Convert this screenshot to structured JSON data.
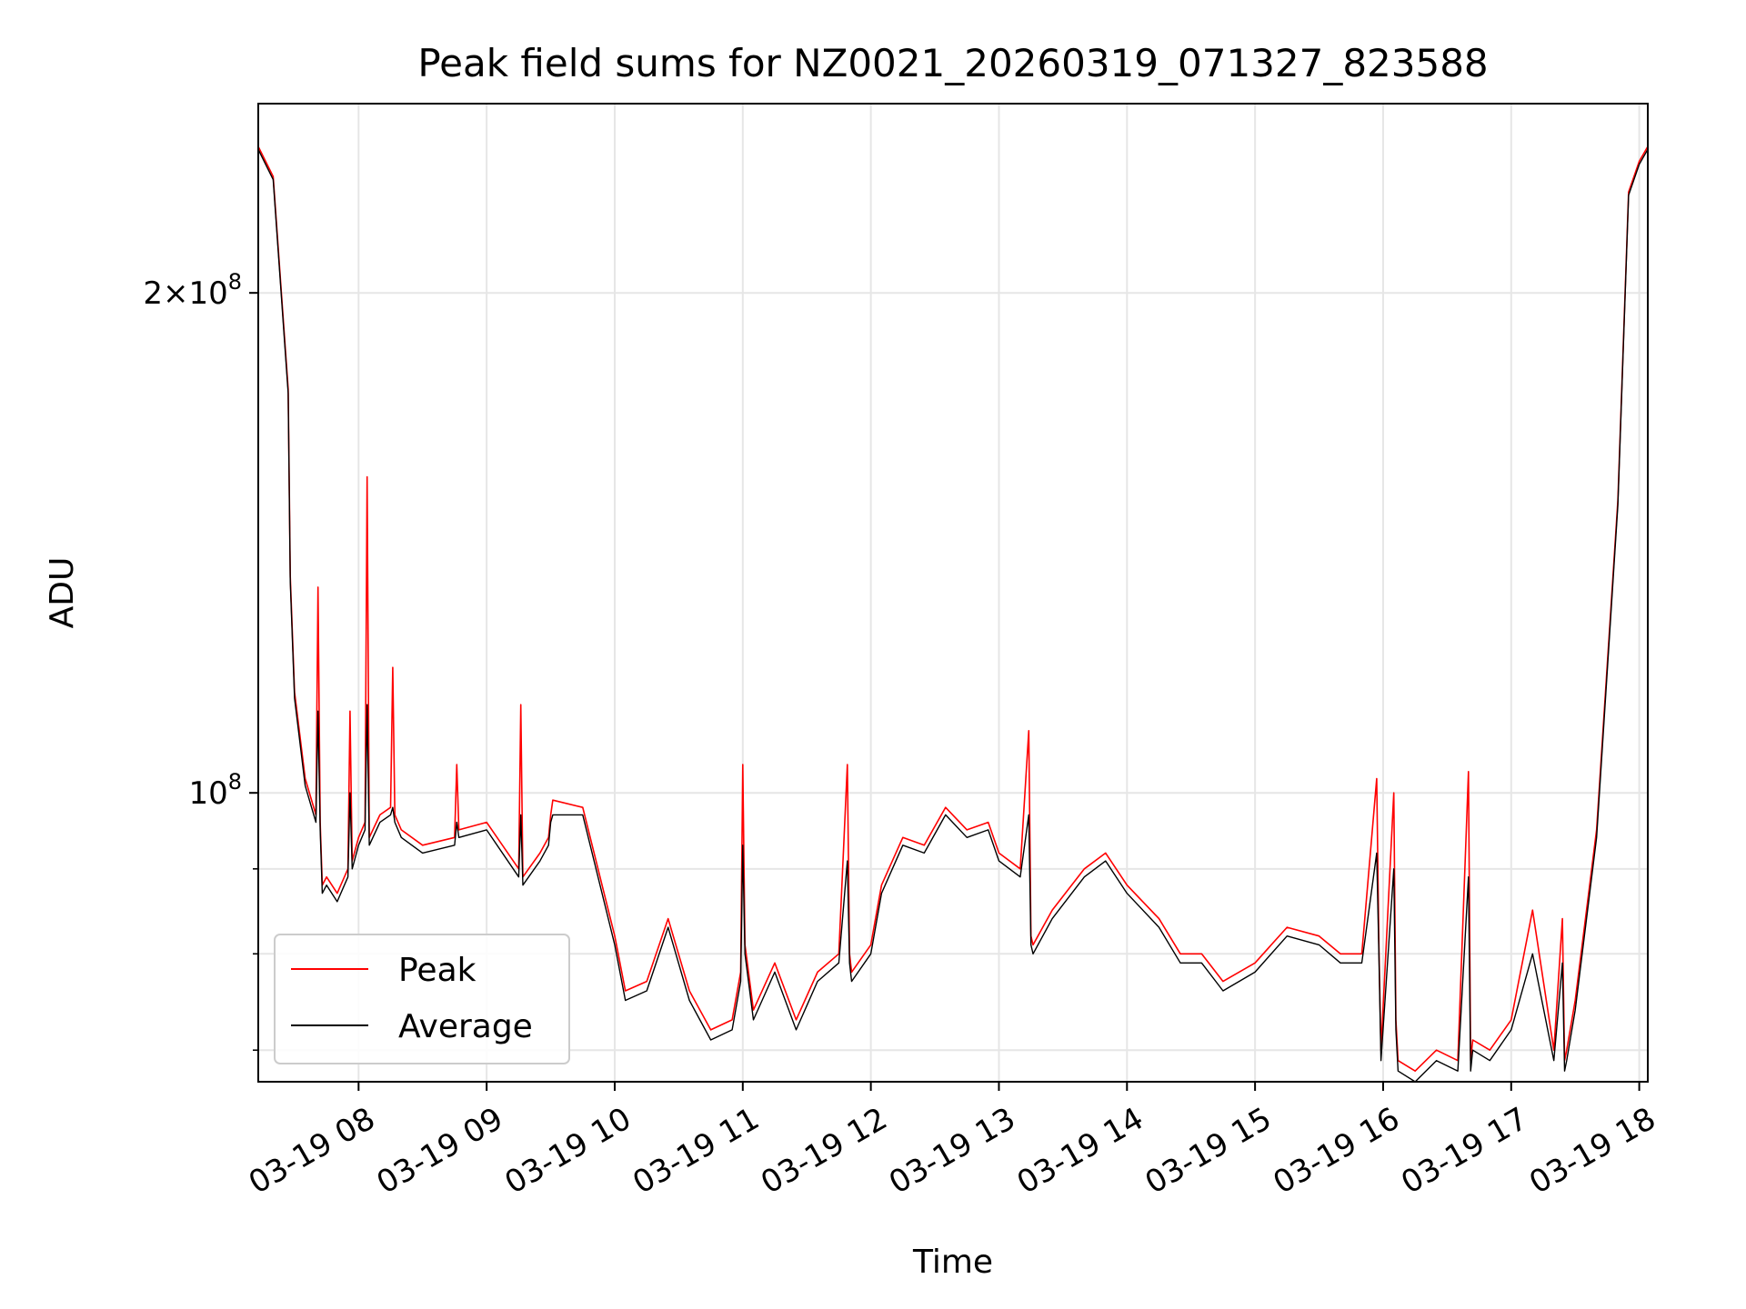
{
  "chart_data": {
    "type": "line",
    "title": "Peak field sums for NZ0021_20260319_071327_823588",
    "xlabel": "Time",
    "ylabel": "ADU",
    "xlim": [
      "2026-03-19 07:13",
      "2026-03-19 18:04"
    ],
    "ylim": [
      67000000,
      260000000
    ],
    "yscale": "log",
    "grid": true,
    "legend_position": "lower-left",
    "x_ticks": [
      {
        "t": "2026-03-19 08:00",
        "label": "03-19 08"
      },
      {
        "t": "2026-03-19 09:00",
        "label": "03-19 09"
      },
      {
        "t": "2026-03-19 10:00",
        "label": "03-19 10"
      },
      {
        "t": "2026-03-19 11:00",
        "label": "03-19 11"
      },
      {
        "t": "2026-03-19 12:00",
        "label": "03-19 12"
      },
      {
        "t": "2026-03-19 13:00",
        "label": "03-19 13"
      },
      {
        "t": "2026-03-19 14:00",
        "label": "03-19 14"
      },
      {
        "t": "2026-03-19 15:00",
        "label": "03-19 15"
      },
      {
        "t": "2026-03-19 16:00",
        "label": "03-19 16"
      },
      {
        "t": "2026-03-19 17:00",
        "label": "03-19 17"
      },
      {
        "t": "2026-03-19 18:00",
        "label": "03-19 18"
      }
    ],
    "y_major_ticks": [
      {
        "value": 100000000,
        "base": "10",
        "exp": "8",
        "coef": ""
      },
      {
        "value": 200000000,
        "base": "10",
        "exp": "8",
        "coef": "2×"
      }
    ],
    "y_minor_ticks": [
      70000000,
      80000000,
      90000000
    ],
    "series": [
      {
        "name": "Peak",
        "color": "#ff0000",
        "x": [
          "2026-03-19 07:13",
          "2026-03-19 07:20",
          "2026-03-19 07:27",
          "2026-03-19 07:28",
          "2026-03-19 07:30",
          "2026-03-19 07:35",
          "2026-03-19 07:40",
          "2026-03-19 07:41",
          "2026-03-19 07:42",
          "2026-03-19 07:43",
          "2026-03-19 07:45",
          "2026-03-19 07:50",
          "2026-03-19 07:55",
          "2026-03-19 07:56",
          "2026-03-19 07:57",
          "2026-03-19 08:00",
          "2026-03-19 08:03",
          "2026-03-19 08:04",
          "2026-03-19 08:05",
          "2026-03-19 08:10",
          "2026-03-19 08:15",
          "2026-03-19 08:16",
          "2026-03-19 08:17",
          "2026-03-19 08:20",
          "2026-03-19 08:30",
          "2026-03-19 08:45",
          "2026-03-19 08:46",
          "2026-03-19 08:47",
          "2026-03-19 09:00",
          "2026-03-19 09:15",
          "2026-03-19 09:16",
          "2026-03-19 09:17",
          "2026-03-19 09:25",
          "2026-03-19 09:29",
          "2026-03-19 09:30",
          "2026-03-19 09:31",
          "2026-03-19 09:45",
          "2026-03-19 10:00",
          "2026-03-19 10:05",
          "2026-03-19 10:15",
          "2026-03-19 10:25",
          "2026-03-19 10:35",
          "2026-03-19 10:45",
          "2026-03-19 10:55",
          "2026-03-19 10:59",
          "2026-03-19 11:00",
          "2026-03-19 11:01",
          "2026-03-19 11:05",
          "2026-03-19 11:15",
          "2026-03-19 11:25",
          "2026-03-19 11:35",
          "2026-03-19 11:45",
          "2026-03-19 11:49",
          "2026-03-19 11:50",
          "2026-03-19 11:51",
          "2026-03-19 12:00",
          "2026-03-19 12:05",
          "2026-03-19 12:15",
          "2026-03-19 12:25",
          "2026-03-19 12:35",
          "2026-03-19 12:45",
          "2026-03-19 12:55",
          "2026-03-19 13:00",
          "2026-03-19 13:10",
          "2026-03-19 13:14",
          "2026-03-19 13:15",
          "2026-03-19 13:16",
          "2026-03-19 13:25",
          "2026-03-19 13:40",
          "2026-03-19 13:50",
          "2026-03-19 14:00",
          "2026-03-19 14:15",
          "2026-03-19 14:25",
          "2026-03-19 14:35",
          "2026-03-19 14:45",
          "2026-03-19 15:00",
          "2026-03-19 15:15",
          "2026-03-19 15:30",
          "2026-03-19 15:40",
          "2026-03-19 15:50",
          "2026-03-19 15:57",
          "2026-03-19 15:58",
          "2026-03-19 15:59",
          "2026-03-19 16:05",
          "2026-03-19 16:06",
          "2026-03-19 16:07",
          "2026-03-19 16:15",
          "2026-03-19 16:25",
          "2026-03-19 16:35",
          "2026-03-19 16:40",
          "2026-03-19 16:41",
          "2026-03-19 16:42",
          "2026-03-19 16:50",
          "2026-03-19 17:00",
          "2026-03-19 17:10",
          "2026-03-19 17:20",
          "2026-03-19 17:24",
          "2026-03-19 17:25",
          "2026-03-19 17:26",
          "2026-03-19 17:30",
          "2026-03-19 17:40",
          "2026-03-19 17:50",
          "2026-03-19 17:55",
          "2026-03-19 18:00",
          "2026-03-19 18:04"
        ],
        "y": [
          245000000,
          235000000,
          175000000,
          135000000,
          115000000,
          102000000,
          97000000,
          133000000,
          96000000,
          88000000,
          89000000,
          87000000,
          90000000,
          112000000,
          91000000,
          94000000,
          96000000,
          155000000,
          94000000,
          97000000,
          98000000,
          119000000,
          97000000,
          95000000,
          93000000,
          94000000,
          104000000,
          95000000,
          96000000,
          90000000,
          113000000,
          89000000,
          92000000,
          94000000,
          97000000,
          99000000,
          98000000,
          82000000,
          76000000,
          77000000,
          84000000,
          76000000,
          72000000,
          73000000,
          78000000,
          104000000,
          81000000,
          74000000,
          79000000,
          73000000,
          78000000,
          80000000,
          104000000,
          80000000,
          78000000,
          81000000,
          88000000,
          94000000,
          93000000,
          98000000,
          95000000,
          96000000,
          92000000,
          90000000,
          109000000,
          82000000,
          81000000,
          85000000,
          90000000,
          92000000,
          88000000,
          84000000,
          80000000,
          80000000,
          77000000,
          79000000,
          83000000,
          82000000,
          80000000,
          80000000,
          102000000,
          81000000,
          70000000,
          100000000,
          73000000,
          69000000,
          68000000,
          70000000,
          69000000,
          103000000,
          69000000,
          71000000,
          70000000,
          73000000,
          85000000,
          70000000,
          84000000,
          69000000,
          70000000,
          75000000,
          95000000,
          150000000,
          230000000,
          240000000,
          245000000
        ]
      },
      {
        "name": "Average",
        "color": "#000000",
        "x": [
          "2026-03-19 07:13",
          "2026-03-19 07:20",
          "2026-03-19 07:27",
          "2026-03-19 07:28",
          "2026-03-19 07:30",
          "2026-03-19 07:35",
          "2026-03-19 07:40",
          "2026-03-19 07:41",
          "2026-03-19 07:42",
          "2026-03-19 07:43",
          "2026-03-19 07:45",
          "2026-03-19 07:50",
          "2026-03-19 07:55",
          "2026-03-19 07:56",
          "2026-03-19 07:57",
          "2026-03-19 08:00",
          "2026-03-19 08:03",
          "2026-03-19 08:04",
          "2026-03-19 08:05",
          "2026-03-19 08:10",
          "2026-03-19 08:15",
          "2026-03-19 08:16",
          "2026-03-19 08:17",
          "2026-03-19 08:20",
          "2026-03-19 08:30",
          "2026-03-19 08:45",
          "2026-03-19 08:46",
          "2026-03-19 08:47",
          "2026-03-19 09:00",
          "2026-03-19 09:15",
          "2026-03-19 09:16",
          "2026-03-19 09:17",
          "2026-03-19 09:25",
          "2026-03-19 09:29",
          "2026-03-19 09:30",
          "2026-03-19 09:31",
          "2026-03-19 09:45",
          "2026-03-19 10:00",
          "2026-03-19 10:05",
          "2026-03-19 10:15",
          "2026-03-19 10:25",
          "2026-03-19 10:35",
          "2026-03-19 10:45",
          "2026-03-19 10:55",
          "2026-03-19 10:59",
          "2026-03-19 11:00",
          "2026-03-19 11:01",
          "2026-03-19 11:05",
          "2026-03-19 11:15",
          "2026-03-19 11:25",
          "2026-03-19 11:35",
          "2026-03-19 11:45",
          "2026-03-19 11:49",
          "2026-03-19 11:50",
          "2026-03-19 11:51",
          "2026-03-19 12:00",
          "2026-03-19 12:05",
          "2026-03-19 12:15",
          "2026-03-19 12:25",
          "2026-03-19 12:35",
          "2026-03-19 12:45",
          "2026-03-19 12:55",
          "2026-03-19 13:00",
          "2026-03-19 13:10",
          "2026-03-19 13:14",
          "2026-03-19 13:15",
          "2026-03-19 13:16",
          "2026-03-19 13:25",
          "2026-03-19 13:40",
          "2026-03-19 13:50",
          "2026-03-19 14:00",
          "2026-03-19 14:15",
          "2026-03-19 14:25",
          "2026-03-19 14:35",
          "2026-03-19 14:45",
          "2026-03-19 15:00",
          "2026-03-19 15:15",
          "2026-03-19 15:30",
          "2026-03-19 15:40",
          "2026-03-19 15:50",
          "2026-03-19 15:57",
          "2026-03-19 15:58",
          "2026-03-19 15:59",
          "2026-03-19 16:05",
          "2026-03-19 16:06",
          "2026-03-19 16:07",
          "2026-03-19 16:15",
          "2026-03-19 16:25",
          "2026-03-19 16:35",
          "2026-03-19 16:40",
          "2026-03-19 16:41",
          "2026-03-19 16:42",
          "2026-03-19 16:50",
          "2026-03-19 17:00",
          "2026-03-19 17:10",
          "2026-03-19 17:20",
          "2026-03-19 17:24",
          "2026-03-19 17:25",
          "2026-03-19 17:26",
          "2026-03-19 17:30",
          "2026-03-19 17:40",
          "2026-03-19 17:50",
          "2026-03-19 17:55",
          "2026-03-19 18:00",
          "2026-03-19 18:04"
        ],
        "y": [
          244000000,
          234000000,
          174000000,
          134000000,
          114000000,
          101000000,
          96000000,
          112000000,
          95000000,
          87000000,
          88000000,
          86000000,
          89000000,
          100000000,
          90000000,
          93000000,
          95000000,
          113000000,
          93000000,
          96000000,
          97000000,
          98000000,
          96000000,
          94000000,
          92000000,
          93000000,
          96000000,
          94000000,
          95000000,
          89000000,
          97000000,
          88000000,
          91000000,
          93000000,
          96000000,
          97000000,
          97000000,
          81000000,
          75000000,
          76000000,
          83000000,
          75000000,
          71000000,
          72000000,
          77000000,
          93000000,
          80000000,
          73000000,
          78000000,
          72000000,
          77000000,
          79000000,
          91000000,
          79000000,
          77000000,
          80000000,
          87000000,
          93000000,
          92000000,
          97000000,
          94000000,
          95000000,
          91000000,
          89000000,
          97000000,
          81000000,
          80000000,
          84000000,
          89000000,
          91000000,
          87000000,
          83000000,
          79000000,
          79000000,
          76000000,
          78000000,
          82000000,
          81000000,
          79000000,
          79000000,
          92000000,
          80000000,
          69000000,
          90000000,
          72000000,
          68000000,
          67000000,
          69000000,
          68000000,
          89000000,
          68000000,
          70000000,
          69000000,
          72000000,
          80000000,
          69000000,
          79000000,
          68000000,
          69000000,
          74000000,
          94000000,
          149000000,
          229000000,
          239000000,
          244000000
        ]
      }
    ]
  }
}
